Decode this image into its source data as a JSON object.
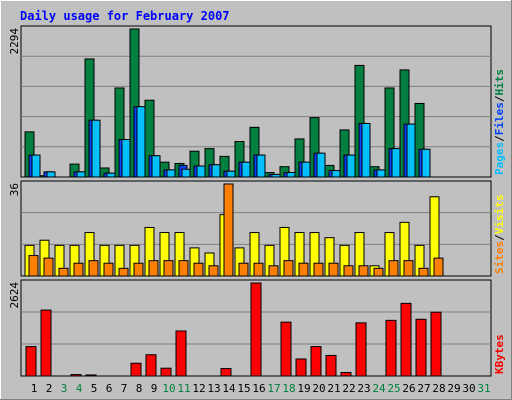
{
  "chart_data": {
    "type": "bar",
    "title": "Daily usage for February 2007",
    "days": [
      "1",
      "2",
      "3",
      "4",
      "5",
      "6",
      "7",
      "8",
      "9",
      "10",
      "11",
      "12",
      "13",
      "14",
      "15",
      "16",
      "17",
      "18",
      "19",
      "20",
      "21",
      "22",
      "23",
      "24",
      "25",
      "26",
      "27",
      "28",
      "29",
      "30",
      "31"
    ],
    "weekend_days": [
      "3",
      "4",
      "10",
      "11",
      "17",
      "18",
      "24",
      "25",
      "31"
    ],
    "colors": {
      "pages": "#00c0ff",
      "files": "#0040ff",
      "hits": "#008040",
      "sites": "#ff8000",
      "visits": "#ffff00",
      "kbytes": "#ff0000",
      "title": "#0000ff",
      "weekday_label": "#000000",
      "weekend_label": "#008040"
    },
    "panels": [
      {
        "name": "hits-files-pages",
        "ymax_label": "2294",
        "ymax": 2294,
        "legend": [
          {
            "label": "Pages",
            "color": "#00c0ff"
          },
          {
            "label": "/",
            "color": "#000000"
          },
          {
            "label": "Files",
            "color": "#0040ff"
          },
          {
            "label": "/",
            "color": "#000000"
          },
          {
            "label": "Hits",
            "color": "#008040"
          }
        ],
        "series": [
          {
            "name": "Hits",
            "color": "#008040",
            "values": [
              700,
              20,
              0,
              200,
              1830,
              140,
              1380,
              2294,
              1190,
              230,
              210,
              400,
              440,
              320,
              550,
              770,
              70,
              160,
              590,
              920,
              180,
              730,
              1730,
              160,
              1380,
              1660,
              1140,
              0,
              0,
              0,
              0
            ]
          },
          {
            "name": "Files",
            "color": "#0040ff",
            "values": [
              340,
              80,
              0,
              80,
              880,
              60,
              580,
              1090,
              330,
              110,
              180,
              170,
              190,
              90,
              230,
              340,
              40,
              70,
              230,
              370,
              100,
              340,
              830,
              110,
              440,
              820,
              430,
              0,
              0,
              0,
              0
            ]
          },
          {
            "name": "Pages",
            "color": "#00c0ff",
            "values": [
              340,
              80,
              0,
              80,
              880,
              60,
              580,
              1090,
              330,
              110,
              120,
              170,
              190,
              90,
              230,
              340,
              40,
              70,
              230,
              370,
              100,
              340,
              830,
              110,
              440,
              820,
              430,
              0,
              0,
              0,
              0
            ]
          }
        ]
      },
      {
        "name": "visits-sites",
        "ymax_label": "36",
        "ymax": 36,
        "legend": [
          {
            "label": "Sites",
            "color": "#ff8000"
          },
          {
            "label": "/",
            "color": "#000000"
          },
          {
            "label": "Visits",
            "color": "#ffff00"
          }
        ],
        "series": [
          {
            "name": "Visits",
            "color": "#ffff00",
            "values": [
              12,
              14,
              12,
              12,
              17,
              12,
              12,
              12,
              19,
              17,
              17,
              11,
              9,
              24,
              11,
              17,
              12,
              19,
              17,
              17,
              15,
              12,
              17,
              4,
              17,
              21,
              12,
              31,
              0,
              0,
              0
            ]
          },
          {
            "name": "Sites",
            "color": "#ff8000",
            "values": [
              8,
              7,
              3,
              5,
              6,
              5,
              3,
              5,
              6,
              6,
              6,
              5,
              4,
              36,
              5,
              5,
              4,
              6,
              5,
              5,
              5,
              4,
              4,
              3,
              6,
              6,
              3,
              7,
              0,
              0,
              0
            ]
          }
        ]
      },
      {
        "name": "kbytes",
        "ymax_label": "2624",
        "ymax": 2624,
        "legend": [
          {
            "label": "KBytes",
            "color": "#ff0000"
          }
        ],
        "series": [
          {
            "name": "KBytes",
            "color": "#ff0000",
            "values": [
              830,
              1860,
              0,
              40,
              30,
              0,
              0,
              360,
              600,
              220,
              1270,
              0,
              0,
              210,
              0,
              2624,
              0,
              1520,
              480,
              830,
              580,
              100,
              1500,
              0,
              1570,
              2050,
              1600,
              1800,
              0,
              0,
              0
            ]
          }
        ]
      }
    ]
  }
}
